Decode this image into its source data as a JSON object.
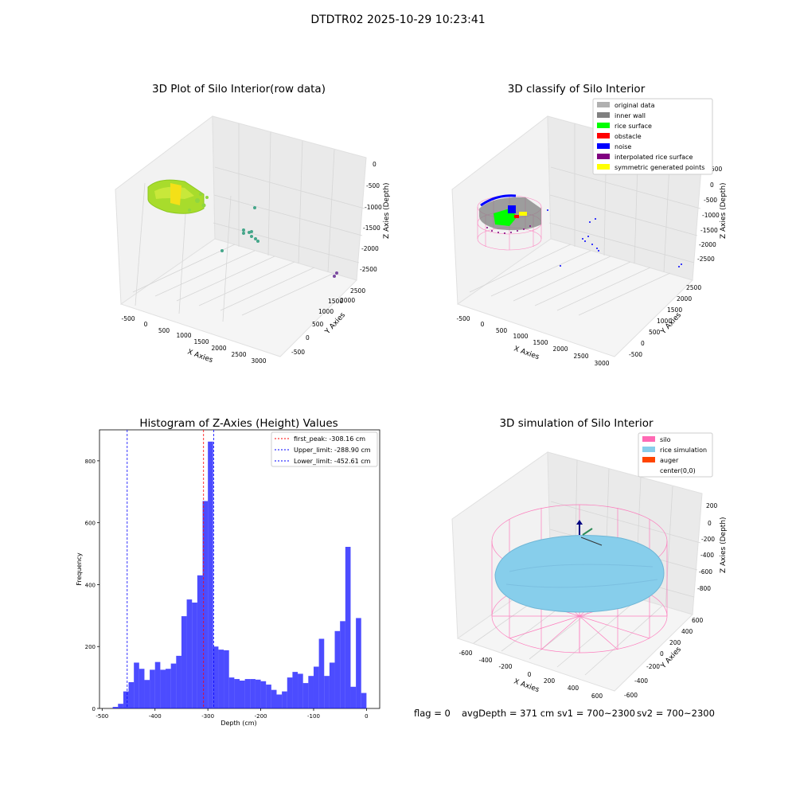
{
  "suptitle": "DTDTR02 2025-10-29 10:23:41",
  "panels": {
    "raw": {
      "title": "3D Plot of Silo Interior(row data)",
      "x_label": "X Axies",
      "y_label": "Y Axies",
      "z_label": "Z Axies (Depth)",
      "x_ticks": [
        "-500",
        "0",
        "500",
        "1000",
        "1500",
        "2000",
        "2500",
        "3000"
      ],
      "y_ticks": [
        "-500",
        "0",
        "500",
        "1000",
        "1500",
        "2000",
        "2500"
      ],
      "z_ticks": [
        "0",
        "-500",
        "-1000",
        "-1500",
        "-2000",
        "-2500"
      ]
    },
    "classify": {
      "title": "3D classify of Silo Interior",
      "x_label": "X Axies",
      "y_label": "Y Axies",
      "z_label": "Z Axies (Depth)",
      "x_ticks": [
        "-500",
        "0",
        "500",
        "1000",
        "1500",
        "2000",
        "2500",
        "3000"
      ],
      "y_ticks": [
        "-500",
        "0",
        "500",
        "1000",
        "1500",
        "2000",
        "2500"
      ],
      "z_ticks": [
        "0",
        "-500",
        "-1000",
        "-1500",
        "-2000",
        "-2500"
      ],
      "z_top_tick": "500",
      "legend": [
        {
          "label": "original data",
          "color": "#b0b0b0"
        },
        {
          "label": "inner wall",
          "color": "#808080"
        },
        {
          "label": "rice surface",
          "color": "#00ff00"
        },
        {
          "label": "obstacle",
          "color": "#ff0000"
        },
        {
          "label": "noise",
          "color": "#0000ff"
        },
        {
          "label": "interpolated rice surface",
          "color": "#800080"
        },
        {
          "label": "symmetric generated points",
          "color": "#ffff00"
        }
      ]
    },
    "simulation": {
      "title": "3D simulation of Silo Interior",
      "x_label": "X Axies",
      "y_label": "Y Axies",
      "z_label": "Z Axies (Depth)",
      "x_ticks": [
        "-600",
        "-400",
        "-200",
        "0",
        "200",
        "400",
        "600"
      ],
      "y_ticks": [
        "-600",
        "-400",
        "-200",
        "0",
        "200",
        "400",
        "600"
      ],
      "z_ticks": [
        "200",
        "0",
        "-200",
        "-400",
        "-600",
        "-800"
      ],
      "legend": [
        {
          "label": "silo",
          "color": "#ff69b4"
        },
        {
          "label": "rice simulation",
          "color": "#87ceeb"
        },
        {
          "label": "auger",
          "color": "#ff4500"
        },
        {
          "label": "center(0,0)",
          "color": "#ffffff"
        }
      ]
    }
  },
  "status": {
    "flag": "flag = 0",
    "avg_depth": "avgDepth = 371 cm",
    "sv1": "sv1 = 700~2300",
    "sv2": "sv2 = 700~2300"
  },
  "chart_data": {
    "type": "bar",
    "title": "Histogram of Z-Axies (Height) Values",
    "xlabel": "Depth (cm)",
    "ylabel": "Frequency",
    "bar_color": "#0000ff",
    "xlim": [
      -505,
      25
    ],
    "ylim": [
      0,
      900
    ],
    "x_ticks": [
      -500,
      -400,
      -300,
      -200,
      -100,
      0
    ],
    "y_ticks": [
      0,
      200,
      400,
      600,
      800
    ],
    "bin_width": 10,
    "bin_starts": [
      -480,
      -470,
      -460,
      -450,
      -440,
      -430,
      -420,
      -410,
      -400,
      -390,
      -380,
      -370,
      -360,
      -350,
      -340,
      -330,
      -320,
      -310,
      -300,
      -290,
      -280,
      -270,
      -260,
      -250,
      -240,
      -230,
      -220,
      -210,
      -200,
      -190,
      -180,
      -170,
      -160,
      -150,
      -140,
      -130,
      -120,
      -110,
      -100,
      -90,
      -80,
      -70,
      -60,
      -50,
      -40,
      -30,
      -20,
      -10
    ],
    "values": [
      5,
      15,
      55,
      85,
      148,
      128,
      92,
      125,
      150,
      125,
      128,
      145,
      170,
      298,
      352,
      342,
      430,
      670,
      862,
      200,
      190,
      188,
      100,
      95,
      90,
      95,
      95,
      93,
      88,
      77,
      60,
      45,
      55,
      100,
      118,
      112,
      82,
      105,
      135,
      225,
      105,
      148,
      250,
      282,
      522,
      70,
      292,
      50
    ],
    "vlines": [
      {
        "label": "first_peak: -308.16 cm",
        "x": -308.16,
        "color": "#ff0000"
      },
      {
        "label": "Upper_limit: -288.90 cm",
        "x": -288.9,
        "color": "#0000ff"
      },
      {
        "label": "Lower_limit: -452.61 cm",
        "x": -452.61,
        "color": "#0000ff"
      }
    ]
  }
}
